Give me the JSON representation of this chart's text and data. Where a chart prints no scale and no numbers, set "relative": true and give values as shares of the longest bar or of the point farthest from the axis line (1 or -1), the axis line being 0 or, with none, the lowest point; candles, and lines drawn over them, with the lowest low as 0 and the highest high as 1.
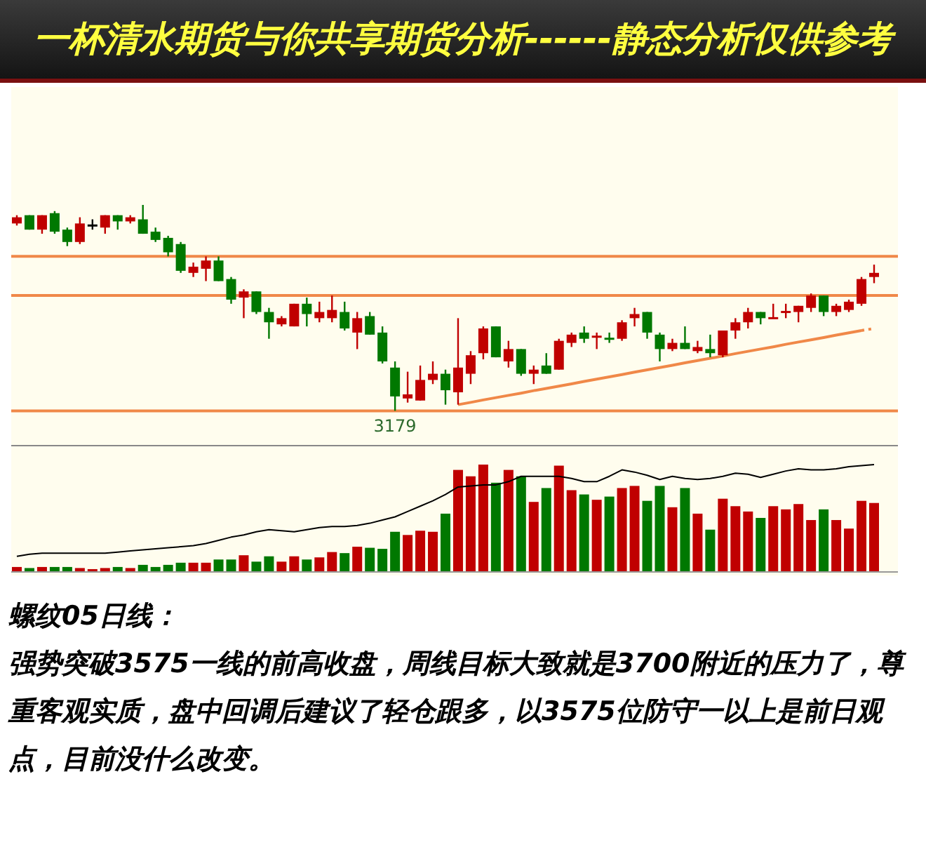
{
  "chart_data": [
    {
      "type": "candlestick",
      "title": "一杯清水期货与你共享期货分析------静态分析仅供参考",
      "relative": true,
      "categories": [
        null,
        null,
        null,
        null,
        null,
        null,
        null,
        null,
        null,
        null,
        null,
        null,
        null,
        null,
        null,
        null,
        null,
        null,
        null,
        null,
        null,
        null,
        null,
        null,
        null,
        null,
        null,
        null,
        null,
        null,
        null,
        null,
        null,
        null,
        null,
        null,
        null,
        null,
        null,
        null,
        null,
        null,
        null,
        null,
        null,
        null,
        null,
        null,
        null,
        null,
        null,
        null,
        null,
        null,
        null,
        null,
        null,
        null,
        null,
        null,
        null,
        null,
        null,
        null,
        null,
        null,
        null,
        null,
        null
      ],
      "ohlc": [
        [
          0.91,
          0.95,
          0.9,
          0.94
        ],
        [
          0.95,
          0.95,
          0.88,
          0.88
        ],
        [
          0.88,
          0.95,
          0.86,
          0.95
        ],
        [
          0.96,
          0.97,
          0.86,
          0.87
        ],
        [
          0.88,
          0.89,
          0.8,
          0.82
        ],
        [
          0.82,
          0.94,
          0.81,
          0.91
        ],
        [
          0.9,
          0.93,
          0.88,
          0.9
        ],
        [
          0.89,
          0.95,
          0.86,
          0.95
        ],
        [
          0.95,
          0.95,
          0.88,
          0.92
        ],
        [
          0.92,
          0.95,
          0.91,
          0.94
        ],
        [
          0.93,
          1.0,
          0.86,
          0.86
        ],
        [
          0.87,
          0.89,
          0.82,
          0.83
        ],
        [
          0.84,
          0.85,
          0.75,
          0.77
        ],
        [
          0.81,
          0.82,
          0.67,
          0.68
        ],
        [
          0.67,
          0.72,
          0.65,
          0.7
        ],
        [
          0.69,
          0.75,
          0.63,
          0.73
        ],
        [
          0.73,
          0.75,
          0.63,
          0.63
        ],
        [
          0.64,
          0.65,
          0.52,
          0.54
        ],
        [
          0.55,
          0.59,
          0.45,
          0.58
        ],
        [
          0.58,
          0.58,
          0.47,
          0.48
        ],
        [
          0.48,
          0.5,
          0.35,
          0.43
        ],
        [
          0.42,
          0.46,
          0.41,
          0.45
        ],
        [
          0.41,
          0.52,
          0.41,
          0.52
        ],
        [
          0.52,
          0.55,
          0.41,
          0.47
        ],
        [
          0.45,
          0.53,
          0.43,
          0.48
        ],
        [
          0.45,
          0.56,
          0.43,
          0.49
        ],
        [
          0.48,
          0.53,
          0.39,
          0.4
        ],
        [
          0.38,
          0.48,
          0.3,
          0.45
        ],
        [
          0.46,
          0.48,
          0.37,
          0.37
        ],
        [
          0.38,
          0.41,
          0.23,
          0.24
        ],
        [
          0.21,
          0.24,
          0.0,
          0.07
        ],
        [
          0.06,
          0.19,
          0.04,
          0.08
        ],
        [
          0.05,
          0.22,
          0.05,
          0.15
        ],
        [
          0.15,
          0.24,
          0.13,
          0.18
        ],
        [
          0.18,
          0.2,
          0.03,
          0.1
        ],
        [
          0.09,
          0.45,
          0.03,
          0.21
        ],
        [
          0.18,
          0.29,
          0.13,
          0.27
        ],
        [
          0.28,
          0.41,
          0.25,
          0.4
        ],
        [
          0.41,
          0.41,
          0.26,
          0.26
        ],
        [
          0.24,
          0.34,
          0.21,
          0.3
        ],
        [
          0.3,
          0.3,
          0.17,
          0.18
        ],
        [
          0.18,
          0.22,
          0.13,
          0.2
        ],
        [
          0.22,
          0.28,
          0.18,
          0.18
        ],
        [
          0.2,
          0.35,
          0.2,
          0.34
        ],
        [
          0.33,
          0.38,
          0.31,
          0.37
        ],
        [
          0.38,
          0.41,
          0.33,
          0.35
        ],
        [
          0.36,
          0.38,
          0.3,
          0.36
        ],
        [
          0.35,
          0.38,
          0.33,
          0.35
        ],
        [
          0.35,
          0.44,
          0.34,
          0.43
        ],
        [
          0.45,
          0.5,
          0.41,
          0.47
        ],
        [
          0.48,
          0.48,
          0.35,
          0.38
        ],
        [
          0.37,
          0.38,
          0.24,
          0.3
        ],
        [
          0.3,
          0.35,
          0.29,
          0.33
        ],
        [
          0.33,
          0.41,
          0.3,
          0.3
        ],
        [
          0.29,
          0.34,
          0.28,
          0.31
        ],
        [
          0.3,
          0.37,
          0.26,
          0.28
        ],
        [
          0.27,
          0.39,
          0.26,
          0.39
        ],
        [
          0.39,
          0.45,
          0.35,
          0.43
        ],
        [
          0.43,
          0.5,
          0.4,
          0.48
        ],
        [
          0.48,
          0.48,
          0.42,
          0.45
        ],
        [
          0.45,
          0.52,
          0.45,
          0.45
        ],
        [
          0.48,
          0.52,
          0.45,
          0.48
        ],
        [
          0.48,
          0.51,
          0.43,
          0.51
        ],
        [
          0.5,
          0.57,
          0.48,
          0.56
        ],
        [
          0.56,
          0.56,
          0.46,
          0.48
        ],
        [
          0.48,
          0.52,
          0.46,
          0.51
        ],
        [
          0.49,
          0.54,
          0.48,
          0.53
        ],
        [
          0.52,
          0.65,
          0.51,
          0.64
        ],
        [
          0.65,
          0.71,
          0.62,
          0.67
        ]
      ],
      "colors": [
        "#c00000",
        "#007800",
        "#c00000",
        "#007800",
        "#007800",
        "#c00000",
        "#000000",
        "#c00000",
        "#007800",
        "#c00000",
        "#007800",
        "#007800",
        "#007800",
        "#007800",
        "#c00000",
        "#c00000",
        "#007800",
        "#007800",
        "#c00000",
        "#007800",
        "#007800",
        "#c00000",
        "#c00000",
        "#007800",
        "#c00000",
        "#c00000",
        "#007800",
        "#c00000",
        "#007800",
        "#007800",
        "#007800",
        "#c00000",
        "#c00000",
        "#c00000",
        "#007800",
        "#c00000",
        "#c00000",
        "#c00000",
        "#007800",
        "#c00000",
        "#007800",
        "#c00000",
        "#007800",
        "#c00000",
        "#c00000",
        "#007800",
        "#c00000",
        "#007800",
        "#c00000",
        "#c00000",
        "#007800",
        "#007800",
        "#c00000",
        "#007800",
        "#c00000",
        "#007800",
        "#c00000",
        "#c00000",
        "#c00000",
        "#007800",
        "#c00000",
        "#c00000",
        "#c00000",
        "#c00000",
        "#007800",
        "#c00000",
        "#c00000",
        "#c00000",
        "#c00000"
      ],
      "ref_lines": [
        {
          "axis": "y",
          "value": 0.75,
          "color": "#f08848"
        },
        {
          "axis": "y",
          "value": 0.56,
          "color": "#f08848"
        },
        {
          "axis": "y",
          "value": 0,
          "color": "#f08848"
        }
      ],
      "series": [
        {
          "type": "line",
          "color": "#f08848",
          "values": [
            null,
            null,
            null,
            null,
            null,
            null,
            null,
            null,
            null,
            null,
            null,
            null,
            null,
            null,
            null,
            null,
            null,
            null,
            null,
            null,
            null,
            null,
            null,
            null,
            null,
            null,
            null,
            null,
            null,
            null,
            null,
            null,
            null,
            null,
            null,
            0.03,
            0.041,
            0.053,
            0.064,
            0.075,
            0.086,
            0.098,
            0.109,
            0.12,
            0.131,
            0.143,
            0.154,
            0.165,
            0.176,
            0.188,
            0.199,
            0.21,
            0.221,
            0.233,
            0.244,
            0.255,
            0.266,
            0.278,
            0.289,
            0.3,
            0.311,
            0.323,
            0.334,
            0.345,
            0.356,
            0.368,
            0.379,
            0.39,
            null
          ]
        },
        {
          "type": "line",
          "color": "#f08848",
          "line_style": "dotted",
          "values": [
            null,
            null,
            null,
            null,
            null,
            null,
            null,
            null,
            null,
            null,
            null,
            null,
            null,
            null,
            null,
            null,
            null,
            null,
            null,
            null,
            null,
            null,
            null,
            null,
            null,
            null,
            null,
            null,
            null,
            null,
            null,
            null,
            null,
            null,
            null,
            null,
            null,
            null,
            null,
            null,
            null,
            null,
            null,
            null,
            null,
            null,
            null,
            null,
            null,
            null,
            null,
            null,
            null,
            null,
            null,
            null,
            null,
            null,
            null,
            null,
            null,
            null,
            null,
            null,
            null,
            null,
            null,
            0.39,
            0.4
          ]
        }
      ],
      "annotations": [
        "3179"
      ]
    },
    {
      "type": "bar",
      "relative": true,
      "categories": [
        null,
        null,
        null,
        null,
        null,
        null,
        null,
        null,
        null,
        null,
        null,
        null,
        null,
        null,
        null,
        null,
        null,
        null,
        null,
        null,
        null,
        null,
        null,
        null,
        null,
        null,
        null,
        null,
        null,
        null,
        null,
        null,
        null,
        null,
        null,
        null,
        null,
        null,
        null,
        null,
        null,
        null,
        null,
        null,
        null,
        null,
        null,
        null,
        null,
        null,
        null,
        null,
        null,
        null,
        null,
        null,
        null,
        null,
        null,
        null,
        null,
        null,
        null,
        null,
        null,
        null,
        null,
        null,
        null
      ],
      "values": [
        0.04,
        0.03,
        0.04,
        0.04,
        0.04,
        0.03,
        0.02,
        0.03,
        0.04,
        0.03,
        0.06,
        0.04,
        0.06,
        0.08,
        0.08,
        0.08,
        0.11,
        0.11,
        0.15,
        0.09,
        0.14,
        0.09,
        0.14,
        0.11,
        0.13,
        0.18,
        0.17,
        0.23,
        0.22,
        0.21,
        0.37,
        0.34,
        0.38,
        0.37,
        0.54,
        0.95,
        0.89,
        1.0,
        0.83,
        0.95,
        0.89,
        0.65,
        0.78,
        0.99,
        0.76,
        0.72,
        0.67,
        0.7,
        0.78,
        0.8,
        0.66,
        0.8,
        0.6,
        0.78,
        0.54,
        0.39,
        0.68,
        0.61,
        0.56,
        0.5,
        0.61,
        0.58,
        0.63,
        0.48,
        0.58,
        0.48,
        0.4,
        0.66,
        0.64
      ],
      "colors": [
        "#c00000",
        "#007800",
        "#c00000",
        "#007800",
        "#007800",
        "#c00000",
        "#c00000",
        "#c00000",
        "#007800",
        "#c00000",
        "#007800",
        "#007800",
        "#007800",
        "#007800",
        "#c00000",
        "#c00000",
        "#007800",
        "#007800",
        "#c00000",
        "#007800",
        "#007800",
        "#c00000",
        "#c00000",
        "#007800",
        "#c00000",
        "#c00000",
        "#007800",
        "#c00000",
        "#007800",
        "#007800",
        "#007800",
        "#c00000",
        "#c00000",
        "#c00000",
        "#007800",
        "#c00000",
        "#c00000",
        "#c00000",
        "#007800",
        "#c00000",
        "#007800",
        "#c00000",
        "#007800",
        "#c00000",
        "#c00000",
        "#007800",
        "#c00000",
        "#007800",
        "#c00000",
        "#c00000",
        "#007800",
        "#007800",
        "#c00000",
        "#007800",
        "#c00000",
        "#007800",
        "#c00000",
        "#c00000",
        "#c00000",
        "#007800",
        "#c00000",
        "#c00000",
        "#c00000",
        "#c00000",
        "#007800",
        "#c00000",
        "#c00000",
        "#c00000",
        "#c00000"
      ],
      "annotations": [
        "螺纹05日线：",
        "强势突破3575一线的前高收盘，周线目标大致就是3700附近的压力了，尊重客观实质，盘中回调后建议了轻仓跟多，以3575位防守一以上是前日观点，目前没什么改变。"
      ]
    },
    {
      "type": "line",
      "relative": true,
      "color": "#000000",
      "categories": [
        null,
        null,
        null,
        null,
        null,
        null,
        null,
        null,
        null,
        null,
        null,
        null,
        null,
        null,
        null,
        null,
        null,
        null,
        null,
        null,
        null,
        null,
        null,
        null,
        null,
        null,
        null,
        null,
        null,
        null,
        null,
        null,
        null,
        null,
        null,
        null,
        null,
        null,
        null,
        null,
        null,
        null,
        null,
        null,
        null,
        null,
        null,
        null,
        null,
        null,
        null,
        null,
        null,
        null,
        null,
        null,
        null,
        null,
        null,
        null,
        null,
        null,
        null,
        null,
        null,
        null,
        null,
        null,
        null
      ],
      "values": [
        0.14,
        0.16,
        0.17,
        0.17,
        0.17,
        0.17,
        0.17,
        0.17,
        0.18,
        0.19,
        0.2,
        0.21,
        0.22,
        0.23,
        0.24,
        0.26,
        0.29,
        0.32,
        0.34,
        0.37,
        0.39,
        0.38,
        0.37,
        0.39,
        0.41,
        0.42,
        0.42,
        0.43,
        0.45,
        0.48,
        0.51,
        0.56,
        0.61,
        0.66,
        0.72,
        0.79,
        0.8,
        0.81,
        0.81,
        0.84,
        0.89,
        0.89,
        0.89,
        0.89,
        0.87,
        0.84,
        0.84,
        0.89,
        0.95,
        0.93,
        0.9,
        0.86,
        0.89,
        0.87,
        0.86,
        0.87,
        0.89,
        0.92,
        0.91,
        0.88,
        0.91,
        0.94,
        0.96,
        0.95,
        0.95,
        0.96,
        0.98,
        0.99,
        1.0
      ]
    }
  ]
}
